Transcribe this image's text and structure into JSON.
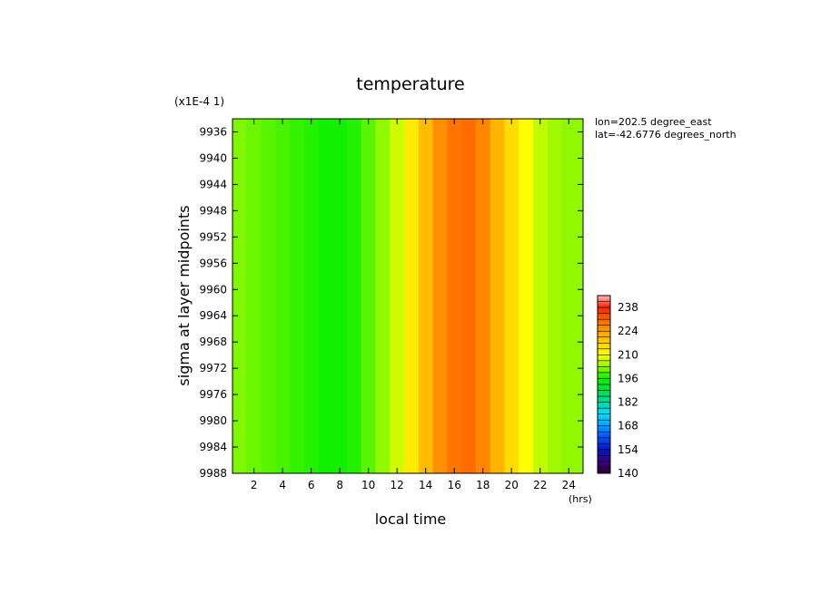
{
  "chart_data": {
    "type": "heatmap",
    "title": "temperature",
    "xlabel": "local time",
    "ylabel": "sigma at layer midpoints",
    "x_units": "(hrs)",
    "y_scale_note": "(x1E-4 1)",
    "annotations": [
      "lon=202.5 degree_east",
      "lat=-42.6776 degrees_north"
    ],
    "xlim": [
      0.5,
      25
    ],
    "ylim": [
      9934,
      9988
    ],
    "y_reversed": true,
    "x_ticks": [
      2,
      4,
      6,
      8,
      10,
      12,
      14,
      16,
      18,
      20,
      22,
      24
    ],
    "y_ticks": [
      9936,
      9940,
      9944,
      9948,
      9952,
      9956,
      9960,
      9964,
      9968,
      9972,
      9976,
      9980,
      9984,
      9988
    ],
    "colorbar": {
      "min": 140,
      "max": 245,
      "ticks": [
        140,
        154,
        168,
        182,
        196,
        210,
        224,
        238
      ]
    },
    "temperature_by_hour": {
      "hours": [
        1,
        2,
        3,
        4,
        5,
        6,
        7,
        8,
        9,
        10,
        11,
        12,
        13,
        14,
        15,
        16,
        17,
        18,
        19,
        20,
        21,
        22,
        23,
        24
      ],
      "values": [
        202,
        201,
        200,
        199,
        198,
        197,
        196,
        196,
        197,
        200,
        203,
        207,
        213,
        220,
        226,
        229,
        230,
        227,
        221,
        215,
        210,
        206,
        204,
        203
      ]
    }
  }
}
